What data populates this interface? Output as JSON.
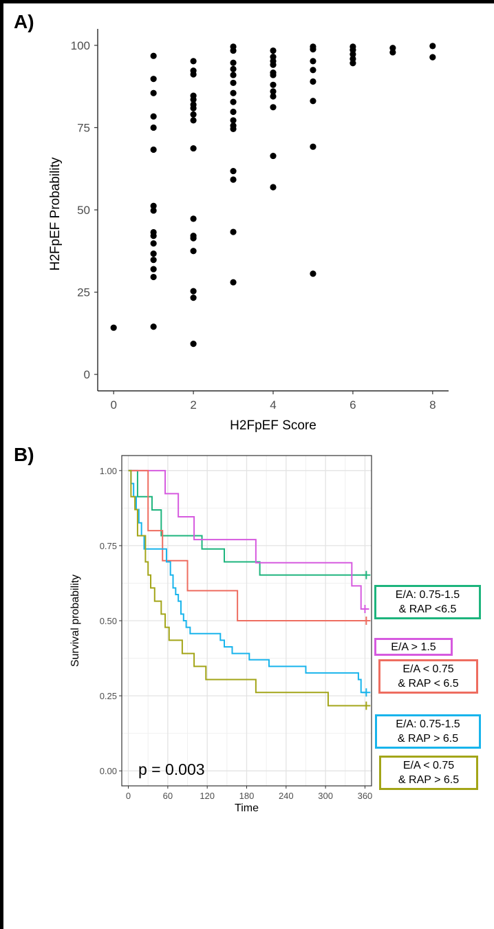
{
  "panel_labels": {
    "a": "A)",
    "b": "B)"
  },
  "chart_data": [
    {
      "panel": "A)",
      "type": "scatter",
      "title": "",
      "xlabel": "H2FpEF Score",
      "ylabel": "H2FpEF Probability",
      "xlim": [
        -0.4,
        8.4
      ],
      "ylim": [
        -5,
        105
      ],
      "xticks": [
        0,
        2,
        4,
        6,
        8
      ],
      "xtick_labels": [
        "0",
        "2",
        "4",
        "6",
        "8"
      ],
      "yticks": [
        0,
        25,
        50,
        75,
        100
      ],
      "ytick_labels": [
        "0",
        "25",
        "50",
        "75",
        "100"
      ],
      "grid": false,
      "color": "#000000",
      "series": [
        {
          "name": "patients",
          "points": [
            [
              0,
              14.2
            ],
            [
              1,
              96.8
            ],
            [
              1,
              89.8
            ],
            [
              1,
              85.5
            ],
            [
              1,
              78.4
            ],
            [
              1,
              75.0
            ],
            [
              1,
              68.3
            ],
            [
              1,
              51.2
            ],
            [
              1,
              49.8
            ],
            [
              1,
              43.2
            ],
            [
              1,
              42.1
            ],
            [
              1,
              39.8
            ],
            [
              1,
              36.7
            ],
            [
              1,
              34.8
            ],
            [
              1,
              32.0
            ],
            [
              1,
              29.6
            ],
            [
              1,
              14.5
            ],
            [
              2,
              95.2
            ],
            [
              2,
              92.3
            ],
            [
              2,
              91.2
            ],
            [
              2,
              84.7
            ],
            [
              2,
              83.5
            ],
            [
              2,
              82.0
            ],
            [
              2,
              80.9
            ],
            [
              2,
              79.0
            ],
            [
              2,
              77.2
            ],
            [
              2,
              68.7
            ],
            [
              2,
              47.3
            ],
            [
              2,
              42.1
            ],
            [
              2,
              41.4
            ],
            [
              2,
              37.5
            ],
            [
              2,
              25.3
            ],
            [
              2,
              23.3
            ],
            [
              2,
              9.3
            ],
            [
              3,
              99.6
            ],
            [
              3,
              98.4
            ],
            [
              3,
              94.7
            ],
            [
              3,
              92.8
            ],
            [
              3,
              91.0
            ],
            [
              3,
              88.6
            ],
            [
              3,
              85.5
            ],
            [
              3,
              82.8
            ],
            [
              3,
              79.8
            ],
            [
              3,
              77.2
            ],
            [
              3,
              75.6
            ],
            [
              3,
              74.6
            ],
            [
              3,
              61.8
            ],
            [
              3,
              59.2
            ],
            [
              3,
              43.3
            ],
            [
              3,
              28.0
            ],
            [
              4,
              98.4
            ],
            [
              4,
              96.5
            ],
            [
              4,
              95.2
            ],
            [
              4,
              94.1
            ],
            [
              4,
              91.7
            ],
            [
              4,
              91.0
            ],
            [
              4,
              88.0
            ],
            [
              4,
              86.0
            ],
            [
              4,
              84.5
            ],
            [
              4,
              81.2
            ],
            [
              4,
              66.4
            ],
            [
              4,
              56.9
            ],
            [
              5,
              99.6
            ],
            [
              5,
              98.8
            ],
            [
              5,
              95.2
            ],
            [
              5,
              92.5
            ],
            [
              5,
              89.0
            ],
            [
              5,
              83.1
            ],
            [
              5,
              69.2
            ],
            [
              5,
              30.6
            ],
            [
              6,
              99.6
            ],
            [
              6,
              98.6
            ],
            [
              6,
              97.3
            ],
            [
              6,
              95.9
            ],
            [
              6,
              94.6
            ],
            [
              7,
              99.2
            ],
            [
              7,
              97.9
            ],
            [
              8,
              99.8
            ],
            [
              8,
              96.4
            ]
          ]
        }
      ]
    },
    {
      "panel": "B)",
      "type": "line",
      "subtype": "kaplan-meier step",
      "title": "",
      "xlabel": "Time",
      "ylabel": "Survival probability",
      "xlim": [
        -10,
        370
      ],
      "ylim": [
        -0.05,
        1.05
      ],
      "xticks": [
        0,
        60,
        120,
        180,
        240,
        300,
        360
      ],
      "xtick_labels": [
        "0",
        "60",
        "120",
        "180",
        "240",
        "300",
        "360"
      ],
      "yticks": [
        0,
        0.25,
        0.5,
        0.75,
        1.0
      ],
      "ytick_labels": [
        "0.00",
        "0.25",
        "0.50",
        "0.75",
        "1.00"
      ],
      "grid": true,
      "annotation": "p = 0.003",
      "series": [
        {
          "name": "E/A: 0.75-1.5 & RAP <6.5",
          "color": "#1DB47D",
          "censor_time": 362,
          "steps": [
            [
              0,
              1.0
            ],
            [
              14,
              0.913
            ],
            [
              36,
              0.869
            ],
            [
              50,
              0.783
            ],
            [
              112,
              0.739
            ],
            [
              146,
              0.696
            ],
            [
              200,
              0.652
            ],
            [
              362,
              0.652
            ]
          ]
        },
        {
          "name": "E/A > 1.5",
          "color": "#D65ADF",
          "censor_time": 360,
          "steps": [
            [
              0,
              1.0
            ],
            [
              56,
              0.923
            ],
            [
              76,
              0.846
            ],
            [
              100,
              0.77
            ],
            [
              194,
              0.693
            ],
            [
              340,
              0.616
            ],
            [
              354,
              0.539
            ],
            [
              360,
              0.539
            ]
          ]
        },
        {
          "name": "E/A < 0.75 & RAP < 6.5",
          "color": "#EE6D60",
          "censor_time": 362,
          "steps": [
            [
              0,
              1.0
            ],
            [
              30,
              0.8
            ],
            [
              52,
              0.7
            ],
            [
              90,
              0.6
            ],
            [
              166,
              0.5
            ],
            [
              362,
              0.5
            ]
          ]
        },
        {
          "name": "E/A: 0.75-1.5 & RAP > 6.5",
          "color": "#18B4EC",
          "censor_time": 362,
          "steps": [
            [
              0,
              1.0
            ],
            [
              4,
              0.957
            ],
            [
              8,
              0.913
            ],
            [
              12,
              0.87
            ],
            [
              16,
              0.826
            ],
            [
              20,
              0.783
            ],
            [
              24,
              0.739
            ],
            [
              58,
              0.696
            ],
            [
              64,
              0.652
            ],
            [
              68,
              0.609
            ],
            [
              72,
              0.587
            ],
            [
              76,
              0.565
            ],
            [
              80,
              0.522
            ],
            [
              84,
              0.5
            ],
            [
              88,
              0.478
            ],
            [
              94,
              0.457
            ],
            [
              140,
              0.435
            ],
            [
              146,
              0.413
            ],
            [
              158,
              0.391
            ],
            [
              184,
              0.37
            ],
            [
              214,
              0.348
            ],
            [
              270,
              0.326
            ],
            [
              350,
              0.304
            ],
            [
              354,
              0.261
            ],
            [
              362,
              0.261
            ]
          ]
        },
        {
          "name": "E/A < 0.75 & RAP > 6.5",
          "color": "#A3A518",
          "censor_time": 362,
          "steps": [
            [
              0,
              1.0
            ],
            [
              4,
              0.913
            ],
            [
              10,
              0.87
            ],
            [
              14,
              0.783
            ],
            [
              26,
              0.696
            ],
            [
              30,
              0.652
            ],
            [
              34,
              0.609
            ],
            [
              40,
              0.565
            ],
            [
              50,
              0.522
            ],
            [
              56,
              0.478
            ],
            [
              62,
              0.435
            ],
            [
              82,
              0.391
            ],
            [
              100,
              0.348
            ],
            [
              118,
              0.304
            ],
            [
              194,
              0.261
            ],
            [
              304,
              0.217
            ],
            [
              362,
              0.217
            ]
          ]
        }
      ],
      "legend": [
        {
          "lines": [
            "E/A: 0.75-1.5",
            "& RAP <6.5"
          ],
          "color": "#1DB47D"
        },
        {
          "lines": [
            "E/A > 1.5"
          ],
          "color": "#D65ADF"
        },
        {
          "lines": [
            "E/A < 0.75",
            "& RAP < 6.5"
          ],
          "color": "#EE6D60"
        },
        {
          "lines": [
            "E/A: 0.75-1.5",
            "& RAP > 6.5"
          ],
          "color": "#18B4EC"
        },
        {
          "lines": [
            "E/A < 0.75",
            "& RAP > 6.5"
          ],
          "color": "#A3A518"
        }
      ]
    }
  ]
}
